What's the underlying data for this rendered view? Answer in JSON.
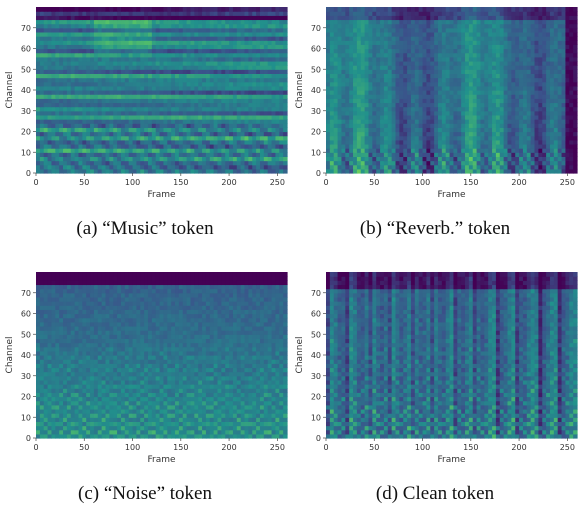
{
  "colors": {
    "colormap": [
      "#440154",
      "#3b528b",
      "#21918c",
      "#5ec962",
      "#fde725"
    ]
  },
  "chart_data": [
    {
      "type": "heatmap",
      "caption": "(a) “Music” token",
      "xlabel": "Frame",
      "ylabel": "Channel",
      "xlim": [
        0,
        260
      ],
      "ylim": [
        0,
        80
      ],
      "xticks": [
        0,
        50,
        100,
        150,
        200,
        250
      ],
      "yticks": [
        0,
        10,
        20,
        30,
        40,
        50,
        60,
        70
      ]
    },
    {
      "type": "heatmap",
      "caption": "(b) “Reverb.” token",
      "xlabel": "Frame",
      "ylabel": "Channel",
      "xlim": [
        0,
        260
      ],
      "ylim": [
        0,
        80
      ],
      "xticks": [
        0,
        50,
        100,
        150,
        200,
        250
      ],
      "yticks": [
        0,
        10,
        20,
        30,
        40,
        50,
        60,
        70
      ]
    },
    {
      "type": "heatmap",
      "caption": "(c) “Noise” token",
      "xlabel": "Frame",
      "ylabel": "Channel",
      "xlim": [
        0,
        260
      ],
      "ylim": [
        0,
        80
      ],
      "xticks": [
        0,
        50,
        100,
        150,
        200,
        250
      ],
      "yticks": [
        0,
        10,
        20,
        30,
        40,
        50,
        60,
        70
      ]
    },
    {
      "type": "heatmap",
      "caption": "(d) Clean token",
      "xlabel": "Frame",
      "ylabel": "Channel",
      "xlim": [
        0,
        260
      ],
      "ylim": [
        0,
        80
      ],
      "xticks": [
        0,
        50,
        100,
        150,
        200,
        250
      ],
      "yticks": [
        0,
        10,
        20,
        30,
        40,
        50,
        60,
        70
      ]
    }
  ]
}
